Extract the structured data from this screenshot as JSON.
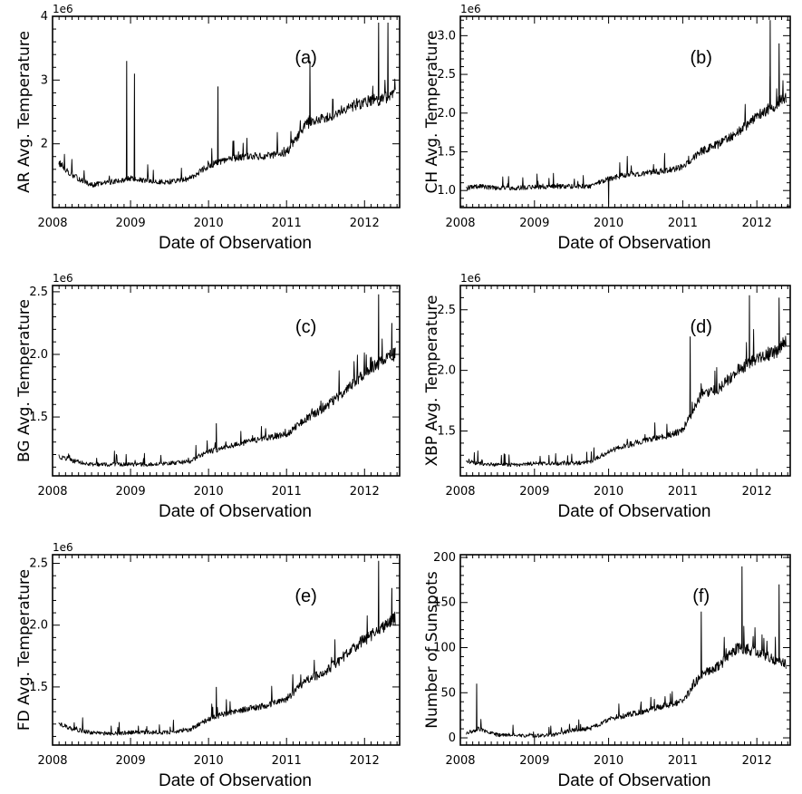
{
  "chart_data": [
    {
      "type": "line",
      "panel": "(a)",
      "ylabel": "AR Avg. Temperature",
      "xlabel": "Date of Observation",
      "offset_label": "1e6",
      "xlim": [
        2008.0,
        2012.45
      ],
      "ylim": [
        1.0,
        4.0
      ],
      "x_ticks": [
        "2008",
        "2009",
        "2010",
        "2011",
        "2012"
      ],
      "y_ticks": [
        "2",
        "3",
        "4"
      ],
      "series_style": {
        "color": "#000000"
      },
      "x": [
        2008.08,
        2008.25,
        2008.5,
        2008.75,
        2009.0,
        2009.25,
        2009.5,
        2009.75,
        2010.0,
        2010.25,
        2010.5,
        2010.75,
        2011.0,
        2011.25,
        2011.5,
        2011.75,
        2012.0,
        2012.25,
        2012.4
      ],
      "y": [
        1.7,
        1.5,
        1.35,
        1.4,
        1.45,
        1.4,
        1.4,
        1.45,
        1.65,
        1.75,
        1.8,
        1.8,
        1.85,
        2.3,
        2.4,
        2.55,
        2.65,
        2.7,
        2.75
      ],
      "spikes": [
        {
          "x": 2008.95,
          "y": 3.3
        },
        {
          "x": 2009.05,
          "y": 3.1
        },
        {
          "x": 2010.12,
          "y": 2.9
        },
        {
          "x": 2011.3,
          "y": 3.3
        },
        {
          "x": 2012.18,
          "y": 3.9
        },
        {
          "x": 2012.3,
          "y": 3.9
        }
      ]
    },
    {
      "type": "line",
      "panel": "(b)",
      "ylabel": "CH Avg. Temperature",
      "xlabel": "Date of Observation",
      "offset_label": "1e6",
      "xlim": [
        2008.0,
        2012.45
      ],
      "ylim": [
        0.78,
        3.25
      ],
      "x_ticks": [
        "2008",
        "2009",
        "2010",
        "2011",
        "2012"
      ],
      "y_ticks": [
        "1.0",
        "1.5",
        "2.0",
        "2.5",
        "3.0"
      ],
      "series_style": {
        "color": "#000000"
      },
      "x": [
        2008.08,
        2008.25,
        2008.5,
        2008.75,
        2009.0,
        2009.25,
        2009.5,
        2009.75,
        2010.0,
        2010.25,
        2010.5,
        2010.75,
        2011.0,
        2011.25,
        2011.5,
        2011.75,
        2012.0,
        2012.25,
        2012.4
      ],
      "y": [
        1.03,
        1.05,
        1.03,
        1.03,
        1.04,
        1.05,
        1.05,
        1.05,
        1.15,
        1.2,
        1.22,
        1.25,
        1.3,
        1.5,
        1.6,
        1.75,
        1.95,
        2.1,
        2.2
      ],
      "spikes": [
        {
          "x": 2010.0,
          "y": 0.8
        },
        {
          "x": 2012.18,
          "y": 3.2
        },
        {
          "x": 2012.3,
          "y": 2.9
        }
      ]
    },
    {
      "type": "line",
      "panel": "(c)",
      "ylabel": "BG Avg. Temperature",
      "xlabel": "Date of Observation",
      "offset_label": "1e6",
      "xlim": [
        2008.0,
        2012.45
      ],
      "ylim": [
        1.03,
        2.55
      ],
      "x_ticks": [
        "2008",
        "2009",
        "2010",
        "2011",
        "2012"
      ],
      "y_ticks": [
        "1.5",
        "2.0",
        "2.5"
      ],
      "series_style": {
        "color": "#000000"
      },
      "x": [
        2008.08,
        2008.25,
        2008.5,
        2008.75,
        2009.0,
        2009.25,
        2009.5,
        2009.75,
        2010.0,
        2010.25,
        2010.5,
        2010.75,
        2011.0,
        2011.25,
        2011.5,
        2011.75,
        2012.0,
        2012.25,
        2012.4
      ],
      "y": [
        1.18,
        1.15,
        1.12,
        1.12,
        1.12,
        1.12,
        1.13,
        1.14,
        1.22,
        1.26,
        1.3,
        1.33,
        1.36,
        1.48,
        1.58,
        1.7,
        1.85,
        1.95,
        2.0
      ],
      "spikes": [
        {
          "x": 2010.1,
          "y": 1.45
        },
        {
          "x": 2012.18,
          "y": 2.48
        },
        {
          "x": 2012.35,
          "y": 2.25
        }
      ]
    },
    {
      "type": "line",
      "panel": "(d)",
      "ylabel": "XBP Avg. Temperature",
      "xlabel": "Date of Observation",
      "offset_label": "1e6",
      "xlim": [
        2008.0,
        2012.45
      ],
      "ylim": [
        1.13,
        2.7
      ],
      "x_ticks": [
        "2008",
        "2009",
        "2010",
        "2011",
        "2012"
      ],
      "y_ticks": [
        "1.5",
        "2.0",
        "2.5"
      ],
      "series_style": {
        "color": "#000000"
      },
      "x": [
        2008.08,
        2008.25,
        2008.5,
        2008.75,
        2009.0,
        2009.25,
        2009.5,
        2009.75,
        2010.0,
        2010.25,
        2010.5,
        2010.75,
        2011.0,
        2011.25,
        2011.5,
        2011.75,
        2012.0,
        2012.25,
        2012.4
      ],
      "y": [
        1.25,
        1.23,
        1.22,
        1.22,
        1.23,
        1.23,
        1.23,
        1.24,
        1.33,
        1.38,
        1.42,
        1.45,
        1.5,
        1.8,
        1.85,
        2.0,
        2.1,
        2.15,
        2.2
      ],
      "spikes": [
        {
          "x": 2011.1,
          "y": 2.28
        },
        {
          "x": 2011.9,
          "y": 2.62
        },
        {
          "x": 2012.3,
          "y": 2.6
        }
      ]
    },
    {
      "type": "line",
      "panel": "(e)",
      "ylabel": "FD Avg. Temperature",
      "xlabel": "Date of Observation",
      "offset_label": "1e6",
      "xlim": [
        2008.0,
        2012.45
      ],
      "ylim": [
        1.03,
        2.57
      ],
      "x_ticks": [
        "2008",
        "2009",
        "2010",
        "2011",
        "2012"
      ],
      "y_ticks": [
        "1.5",
        "2.0",
        "2.5"
      ],
      "series_style": {
        "color": "#000000"
      },
      "x": [
        2008.08,
        2008.25,
        2008.5,
        2008.75,
        2009.0,
        2009.25,
        2009.5,
        2009.75,
        2010.0,
        2010.25,
        2010.5,
        2010.75,
        2011.0,
        2011.25,
        2011.5,
        2011.75,
        2012.0,
        2012.25,
        2012.4
      ],
      "y": [
        1.2,
        1.16,
        1.13,
        1.12,
        1.13,
        1.13,
        1.13,
        1.15,
        1.24,
        1.29,
        1.32,
        1.35,
        1.4,
        1.55,
        1.62,
        1.75,
        1.88,
        1.98,
        2.05
      ],
      "spikes": [
        {
          "x": 2010.1,
          "y": 1.5
        },
        {
          "x": 2012.18,
          "y": 2.52
        },
        {
          "x": 2012.35,
          "y": 2.3
        }
      ]
    },
    {
      "type": "line",
      "panel": "(f)",
      "ylabel": "Number of Sunspots",
      "xlabel": "Date of Observation",
      "offset_label": "",
      "xlim": [
        2008.0,
        2012.45
      ],
      "ylim": [
        -8,
        203
      ],
      "x_ticks": [
        "2008",
        "2009",
        "2010",
        "2011",
        "2012"
      ],
      "y_ticks": [
        "0",
        "50",
        "100",
        "150",
        "200"
      ],
      "series_style": {
        "color": "#000000"
      },
      "x": [
        2008.08,
        2008.25,
        2008.5,
        2008.75,
        2009.0,
        2009.25,
        2009.5,
        2009.75,
        2010.0,
        2010.25,
        2010.5,
        2010.75,
        2011.0,
        2011.25,
        2011.5,
        2011.75,
        2012.0,
        2012.25,
        2012.4
      ],
      "y": [
        5,
        10,
        3,
        3,
        2,
        3,
        8,
        10,
        20,
        25,
        30,
        35,
        40,
        70,
        80,
        100,
        95,
        85,
        80
      ],
      "spikes": [
        {
          "x": 2008.22,
          "y": 60
        },
        {
          "x": 2011.25,
          "y": 140
        },
        {
          "x": 2011.8,
          "y": 190
        },
        {
          "x": 2012.3,
          "y": 170
        }
      ]
    }
  ]
}
